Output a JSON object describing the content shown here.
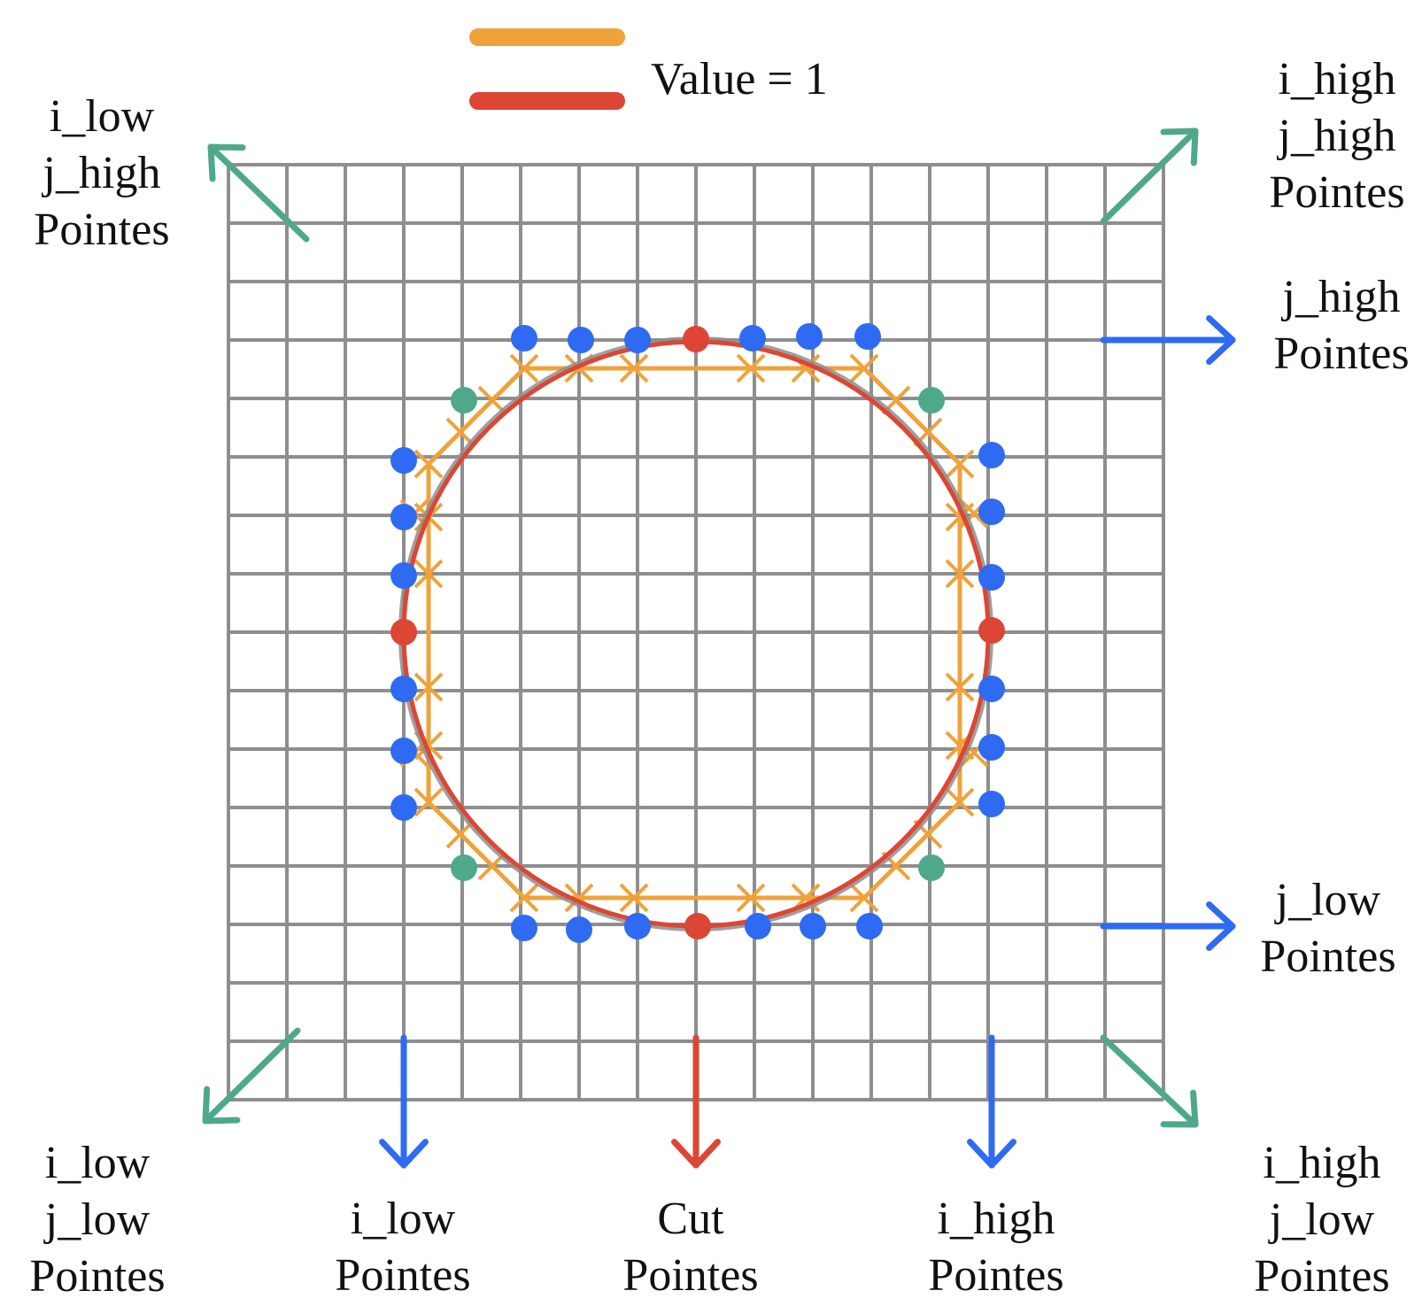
{
  "legend": {
    "label": "Value = 1",
    "entries": [
      {
        "name": "orange-line",
        "color": "#F0A23A"
      },
      {
        "name": "red-line",
        "color": "#DD4634"
      }
    ]
  },
  "colors": {
    "grid": "#8E8E8E",
    "orange": "#F0A23A",
    "red": "#DD4634",
    "blue": "#2E6BF2",
    "green": "#4EA98A"
  },
  "labels": {
    "top_left": [
      "i_low",
      "j_high",
      "Pointes"
    ],
    "top_right": [
      "i_high",
      "j_high",
      "Pointes"
    ],
    "right_upper": [
      "j_high",
      "Pointes"
    ],
    "right_lower": [
      "j_low",
      "Pointes"
    ],
    "bottom_left": [
      "i_low",
      "j_low",
      "Pointes"
    ],
    "bottom_i_low": [
      "i_low",
      "Pointes"
    ],
    "bottom_cut": [
      "Cut",
      "Pointes"
    ],
    "bottom_i_high": [
      "i_high",
      "Pointes"
    ],
    "bottom_right": [
      "i_high",
      "j_low",
      "Pointes"
    ]
  },
  "grid": {
    "columns": 16,
    "rows": 16
  }
}
